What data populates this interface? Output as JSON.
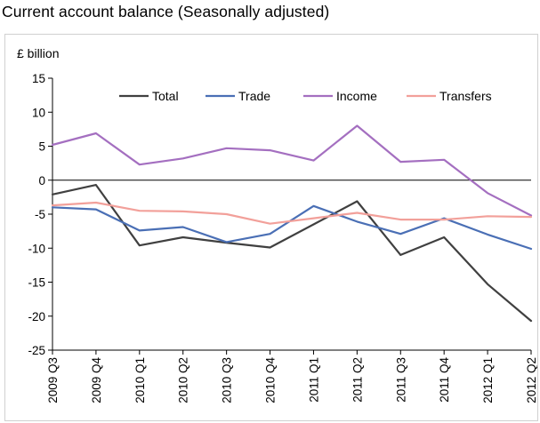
{
  "chart_data": {
    "type": "line",
    "title": "Current account balance (Seasonally adjusted)",
    "ylabel": "£ billion",
    "xlabel": "",
    "ylim": [
      -25,
      15
    ],
    "yticks": [
      15,
      10,
      5,
      0,
      -5,
      -10,
      -15,
      -20,
      -25
    ],
    "grid": false,
    "legend_position": "top",
    "categories": [
      "2009 Q3",
      "2009 Q4",
      "2010 Q1",
      "2010 Q2",
      "2010 Q3",
      "2010 Q4",
      "2011 Q1",
      "2011 Q2",
      "2011 Q3",
      "2011 Q4",
      "2012 Q1",
      "2012 Q2"
    ],
    "series": [
      {
        "name": "Total",
        "color": "#404040",
        "values": [
          -2.1,
          -0.7,
          -9.6,
          -8.4,
          -9.2,
          -9.9,
          -6.5,
          -3.1,
          -11.0,
          -8.4,
          -15.3,
          -20.7
        ]
      },
      {
        "name": "Trade",
        "color": "#4a6fb5",
        "values": [
          -4.0,
          -4.3,
          -7.4,
          -6.9,
          -9.1,
          -7.9,
          -3.8,
          -6.1,
          -7.9,
          -5.6,
          -8.0,
          -10.1
        ]
      },
      {
        "name": "Income",
        "color": "#a46fc0",
        "values": [
          5.2,
          6.9,
          2.3,
          3.2,
          4.7,
          4.4,
          2.9,
          8.0,
          2.7,
          3.0,
          -1.9,
          -5.2
        ]
      },
      {
        "name": "Transfers",
        "color": "#f2a09a",
        "values": [
          -3.7,
          -3.3,
          -4.5,
          -4.6,
          -5.0,
          -6.4,
          -5.6,
          -4.8,
          -5.8,
          -5.8,
          -5.3,
          -5.4
        ]
      }
    ]
  }
}
